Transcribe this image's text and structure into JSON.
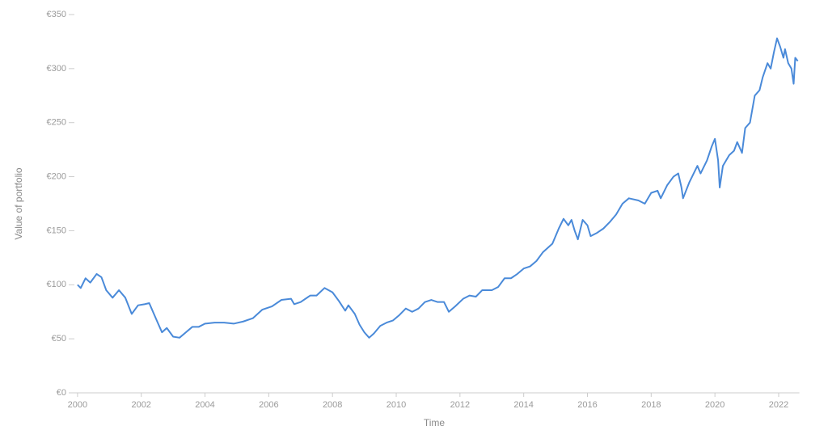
{
  "chart_data": {
    "type": "line",
    "x_label": "Time",
    "y_label": "Value of portfolio",
    "x": [
      2000.0,
      2000.1,
      2000.25,
      2000.4,
      2000.6,
      2000.75,
      2000.9,
      2001.1,
      2001.3,
      2001.5,
      2001.7,
      2001.9,
      2002.1,
      2002.25,
      2002.5,
      2002.65,
      2002.8,
      2003.0,
      2003.2,
      2003.4,
      2003.6,
      2003.8,
      2004.0,
      2004.3,
      2004.6,
      2004.9,
      2005.2,
      2005.5,
      2005.8,
      2006.1,
      2006.4,
      2006.7,
      2006.8,
      2007.0,
      2007.3,
      2007.5,
      2007.75,
      2008.0,
      2008.2,
      2008.4,
      2008.5,
      2008.7,
      2008.85,
      2009.0,
      2009.15,
      2009.3,
      2009.5,
      2009.7,
      2009.9,
      2010.1,
      2010.3,
      2010.5,
      2010.7,
      2010.9,
      2011.1,
      2011.3,
      2011.5,
      2011.65,
      2011.85,
      2012.1,
      2012.3,
      2012.5,
      2012.7,
      2013.0,
      2013.2,
      2013.4,
      2013.6,
      2013.8,
      2014.0,
      2014.2,
      2014.4,
      2014.6,
      2014.9,
      2015.1,
      2015.25,
      2015.4,
      2015.5,
      2015.6,
      2015.7,
      2015.85,
      2016.0,
      2016.1,
      2016.3,
      2016.5,
      2016.7,
      2016.9,
      2017.1,
      2017.3,
      2017.6,
      2017.8,
      2018.0,
      2018.2,
      2018.3,
      2018.5,
      2018.7,
      2018.85,
      2018.95,
      2019.0,
      2019.2,
      2019.45,
      2019.55,
      2019.75,
      2019.9,
      2020.0,
      2020.1,
      2020.15,
      2020.25,
      2020.45,
      2020.6,
      2020.7,
      2020.85,
      2020.95,
      2021.1,
      2021.25,
      2021.4,
      2021.5,
      2021.65,
      2021.75,
      2021.85,
      2021.95,
      2022.05,
      2022.15,
      2022.2,
      2022.3,
      2022.4,
      2022.47,
      2022.52,
      2022.6
    ],
    "series": [
      {
        "name": "Value of portfolio",
        "color": "#4a8ad9",
        "values": [
          100,
          97,
          106,
          102,
          110,
          107,
          95,
          88,
          95,
          88,
          73,
          81,
          82,
          83,
          66,
          56,
          60,
          52,
          51,
          56,
          61,
          61,
          64,
          65,
          65,
          64,
          66,
          69,
          77,
          80,
          86,
          87,
          82,
          84,
          90,
          90,
          97,
          93,
          85,
          76,
          81,
          73,
          63,
          56,
          51,
          55,
          62,
          65,
          67,
          72,
          78,
          75,
          78,
          84,
          86,
          84,
          84,
          75,
          80,
          87,
          90,
          89,
          95,
          95,
          98,
          106,
          106,
          110,
          115,
          117,
          122,
          130,
          138,
          152,
          161,
          155,
          160,
          150,
          142,
          160,
          155,
          145,
          148,
          152,
          158,
          165,
          175,
          180,
          178,
          175,
          185,
          187,
          180,
          192,
          200,
          203,
          190,
          180,
          195,
          210,
          203,
          215,
          228,
          235,
          215,
          190,
          210,
          220,
          224,
          232,
          222,
          245,
          250,
          275,
          280,
          292,
          305,
          300,
          315,
          328,
          320,
          310,
          318,
          305,
          300,
          286,
          310,
          307
        ]
      }
    ],
    "xlim": [
      1999.8,
      2022.65
    ],
    "xticks": [
      2000,
      2002,
      2004,
      2006,
      2008,
      2010,
      2012,
      2014,
      2016,
      2018,
      2020,
      2022
    ],
    "ylim": [
      0,
      350
    ],
    "yticks": [
      {
        "value": 0,
        "label": "€0"
      },
      {
        "value": 50,
        "label": "€50"
      },
      {
        "value": 100,
        "label": "€100"
      },
      {
        "value": 150,
        "label": "€150"
      },
      {
        "value": 200,
        "label": "€200"
      },
      {
        "value": 250,
        "label": "€250"
      },
      {
        "value": 300,
        "label": "€300"
      },
      {
        "value": 350,
        "label": "€350"
      }
    ],
    "grid": false
  }
}
